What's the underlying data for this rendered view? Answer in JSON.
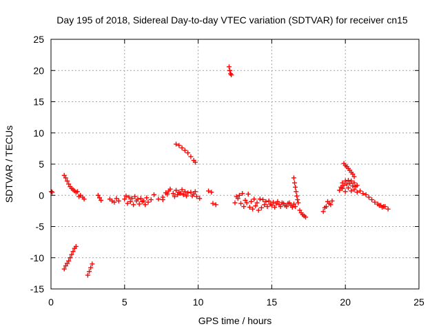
{
  "chart_data": {
    "type": "scatter",
    "title": "Day 195 of 2018, Sidereal Day-to-day VTEC variation (SDTVAR) for receiver cn15",
    "xlabel": "GPS time / hours",
    "ylabel": "SDTVAR / TECUs",
    "xlim": [
      0,
      25
    ],
    "ylim": [
      -15,
      25
    ],
    "xticks": [
      0,
      5,
      10,
      15,
      20,
      25
    ],
    "yticks": [
      -15,
      -10,
      -5,
      0,
      5,
      10,
      15,
      20,
      25
    ],
    "grid": true,
    "marker": "+",
    "color": "#ff0000",
    "segments": [
      {
        "name": "seg-0",
        "points": [
          [
            0.02,
            0.6
          ],
          [
            0.08,
            0.5
          ]
        ]
      },
      {
        "name": "seg-1",
        "points": [
          [
            0.9,
            3.2
          ],
          [
            1.0,
            2.8
          ],
          [
            1.1,
            2.3
          ],
          [
            1.2,
            1.8
          ],
          [
            1.3,
            1.4
          ],
          [
            1.4,
            1.1
          ],
          [
            1.5,
            0.9
          ],
          [
            1.6,
            0.7
          ],
          [
            1.7,
            0.5
          ],
          [
            1.8,
            0.6
          ]
        ]
      },
      {
        "name": "seg-2",
        "points": [
          [
            0.9,
            -11.8
          ],
          [
            1.0,
            -11.3
          ],
          [
            1.1,
            -10.9
          ],
          [
            1.2,
            -10.5
          ],
          [
            1.3,
            -10.0
          ],
          [
            1.4,
            -9.5
          ],
          [
            1.5,
            -9.0
          ],
          [
            1.6,
            -8.5
          ],
          [
            1.7,
            -8.2
          ]
        ]
      },
      {
        "name": "seg-3",
        "points": [
          [
            1.9,
            -0.2
          ],
          [
            2.0,
            0.0
          ],
          [
            2.15,
            -0.3
          ],
          [
            2.25,
            -0.6
          ]
        ]
      },
      {
        "name": "seg-4",
        "points": [
          [
            2.5,
            -12.8
          ],
          [
            2.6,
            -12.2
          ],
          [
            2.7,
            -11.6
          ],
          [
            2.8,
            -11.0
          ]
        ]
      },
      {
        "name": "seg-5",
        "points": [
          [
            3.2,
            0.0
          ],
          [
            3.3,
            -0.4
          ],
          [
            3.4,
            -0.8
          ]
        ]
      },
      {
        "name": "seg-6",
        "points": [
          [
            4.0,
            -0.6
          ],
          [
            4.15,
            -0.9
          ],
          [
            4.3,
            -1.1
          ],
          [
            4.45,
            -0.5
          ],
          [
            4.6,
            -0.9
          ]
        ]
      },
      {
        "name": "seg-7",
        "points": [
          [
            5.0,
            -0.6
          ],
          [
            5.2,
            -1.3
          ],
          [
            5.4,
            -1.0
          ],
          [
            5.6,
            -1.5
          ],
          [
            5.8,
            -0.9
          ],
          [
            6.0,
            -1.4
          ],
          [
            6.2,
            -1.0
          ],
          [
            6.4,
            -1.5
          ],
          [
            6.6,
            -1.1
          ],
          [
            6.8,
            -0.7
          ]
        ]
      },
      {
        "name": "seg-8",
        "points": [
          [
            5.1,
            -0.1
          ],
          [
            5.3,
            -0.3
          ],
          [
            5.5,
            -0.5
          ],
          [
            5.7,
            -0.2
          ],
          [
            5.9,
            -0.6
          ],
          [
            6.1,
            -0.5
          ],
          [
            6.3,
            -0.9
          ],
          [
            6.5,
            -0.4
          ]
        ]
      },
      {
        "name": "seg-9",
        "points": [
          [
            7.0,
            0.1
          ],
          [
            7.3,
            -0.6
          ],
          [
            7.6,
            -0.3
          ],
          [
            7.9,
            0.2
          ],
          [
            8.1,
            1.0
          ],
          [
            8.3,
            0.3
          ],
          [
            8.5,
            0.8
          ],
          [
            8.7,
            0.5
          ],
          [
            8.9,
            0.9
          ],
          [
            9.1,
            0.6
          ],
          [
            9.3,
            0.4
          ],
          [
            9.5,
            0.5
          ],
          [
            9.7,
            0.2
          ],
          [
            9.9,
            -0.2
          ],
          [
            10.1,
            -0.5
          ]
        ]
      },
      {
        "name": "seg-10",
        "points": [
          [
            7.6,
            -0.7
          ],
          [
            7.8,
            0.4
          ],
          [
            8.0,
            0.7
          ],
          [
            8.4,
            -0.2
          ],
          [
            8.6,
            0.1
          ],
          [
            8.8,
            0.3
          ],
          [
            9.0,
            0.1
          ],
          [
            9.2,
            -0.1
          ],
          [
            9.6,
            -0.1
          ],
          [
            9.8,
            0.6
          ]
        ]
      },
      {
        "name": "seg-11",
        "points": [
          [
            8.5,
            8.2
          ],
          [
            8.7,
            8.0
          ],
          [
            8.9,
            7.6
          ],
          [
            9.1,
            7.2
          ],
          [
            9.3,
            6.8
          ],
          [
            9.5,
            6.2
          ],
          [
            9.7,
            5.6
          ],
          [
            9.8,
            5.3
          ]
        ]
      },
      {
        "name": "seg-12",
        "points": [
          [
            10.7,
            0.7
          ],
          [
            10.9,
            0.5
          ],
          [
            11.0,
            -1.3
          ],
          [
            11.2,
            -1.5
          ]
        ]
      },
      {
        "name": "seg-13",
        "points": [
          [
            12.1,
            20.6
          ],
          [
            12.15,
            20.0
          ],
          [
            12.2,
            19.5
          ],
          [
            12.25,
            19.3
          ]
        ]
      },
      {
        "name": "seg-14",
        "points": [
          [
            12.5,
            -1.2
          ],
          [
            12.7,
            -0.5
          ],
          [
            12.9,
            -1.3
          ],
          [
            13.0,
            0.3
          ],
          [
            13.1,
            -1.8
          ],
          [
            13.3,
            -1.2
          ],
          [
            13.5,
            -1.9
          ],
          [
            13.7,
            -2.2
          ],
          [
            13.9,
            -1.7
          ],
          [
            14.1,
            -2.4
          ],
          [
            14.3,
            -2.0
          ]
        ]
      },
      {
        "name": "seg-15",
        "points": [
          [
            12.6,
            -0.2
          ],
          [
            12.8,
            0.0
          ],
          [
            13.2,
            -0.8
          ],
          [
            13.4,
            0.2
          ],
          [
            13.6,
            -1.0
          ],
          [
            13.8,
            -0.6
          ],
          [
            14.0,
            -1.2
          ],
          [
            14.2,
            -0.6
          ],
          [
            14.4,
            -0.7
          ],
          [
            14.6,
            -1.0
          ]
        ]
      },
      {
        "name": "seg-16",
        "points": [
          [
            14.5,
            -1.5
          ],
          [
            14.7,
            -1.8
          ],
          [
            14.9,
            -1.4
          ],
          [
            15.1,
            -1.1
          ],
          [
            15.3,
            -1.3
          ],
          [
            15.5,
            -1.5
          ],
          [
            15.7,
            -1.2
          ],
          [
            15.9,
            -1.6
          ],
          [
            16.1,
            -1.3
          ],
          [
            16.3,
            -1.6
          ],
          [
            16.5,
            -1.4
          ]
        ]
      },
      {
        "name": "seg-17",
        "points": [
          [
            14.8,
            -0.9
          ],
          [
            15.0,
            -1.6
          ],
          [
            15.2,
            -1.9
          ],
          [
            15.4,
            -1.0
          ],
          [
            15.6,
            -1.8
          ],
          [
            15.8,
            -1.3
          ],
          [
            16.0,
            -1.8
          ],
          [
            16.2,
            -1.2
          ],
          [
            16.4,
            -1.9
          ]
        ]
      },
      {
        "name": "seg-18",
        "points": [
          [
            16.5,
            2.8
          ],
          [
            16.55,
            2.0
          ],
          [
            16.6,
            1.3
          ],
          [
            16.65,
            0.6
          ],
          [
            16.7,
            -0.1
          ],
          [
            16.75,
            -0.7
          ]
        ]
      },
      {
        "name": "seg-19",
        "points": [
          [
            16.6,
            -1.8
          ],
          [
            16.8,
            -1.2
          ],
          [
            16.9,
            -2.4
          ],
          [
            17.0,
            -2.8
          ],
          [
            17.1,
            -3.1
          ],
          [
            17.2,
            -3.3
          ],
          [
            17.3,
            -3.5
          ]
        ]
      },
      {
        "name": "seg-20",
        "points": [
          [
            18.5,
            -2.6
          ],
          [
            18.6,
            -2.0
          ],
          [
            18.7,
            -1.8
          ],
          [
            18.9,
            -1.3
          ],
          [
            19.1,
            -0.9
          ],
          [
            18.8,
            -1.0
          ],
          [
            19.0,
            -1.5
          ]
        ]
      },
      {
        "name": "seg-21",
        "points": [
          [
            19.9,
            5.1
          ],
          [
            20.0,
            4.8
          ],
          [
            20.1,
            4.6
          ],
          [
            20.2,
            4.3
          ],
          [
            20.3,
            4.0
          ],
          [
            20.4,
            3.7
          ],
          [
            20.5,
            3.4
          ],
          [
            20.6,
            3.0
          ]
        ]
      },
      {
        "name": "seg-22",
        "points": [
          [
            19.7,
            1.3
          ],
          [
            19.8,
            2.0
          ],
          [
            19.9,
            1.6
          ],
          [
            20.0,
            2.3
          ],
          [
            20.1,
            1.8
          ],
          [
            20.2,
            2.4
          ],
          [
            20.3,
            1.9
          ],
          [
            20.4,
            2.3
          ],
          [
            20.5,
            1.5
          ],
          [
            20.6,
            2.0
          ],
          [
            20.7,
            1.4
          ],
          [
            20.8,
            1.6
          ]
        ]
      },
      {
        "name": "seg-23",
        "points": [
          [
            19.6,
            0.8
          ],
          [
            19.8,
            1.1
          ],
          [
            20.0,
            0.6
          ],
          [
            20.2,
            1.2
          ],
          [
            20.4,
            0.7
          ],
          [
            20.6,
            0.9
          ],
          [
            20.8,
            0.5
          ],
          [
            21.0,
            0.7
          ],
          [
            21.2,
            0.3
          ],
          [
            21.4,
            0.1
          ],
          [
            21.6,
            -0.3
          ],
          [
            21.8,
            -0.7
          ],
          [
            22.0,
            -1.1
          ],
          [
            22.2,
            -1.4
          ],
          [
            22.4,
            -1.6
          ],
          [
            22.6,
            -1.8
          ]
        ]
      },
      {
        "name": "seg-24",
        "points": [
          [
            22.3,
            -1.6
          ],
          [
            22.5,
            -1.9
          ],
          [
            22.7,
            -1.8
          ],
          [
            22.9,
            -2.2
          ]
        ]
      }
    ]
  }
}
